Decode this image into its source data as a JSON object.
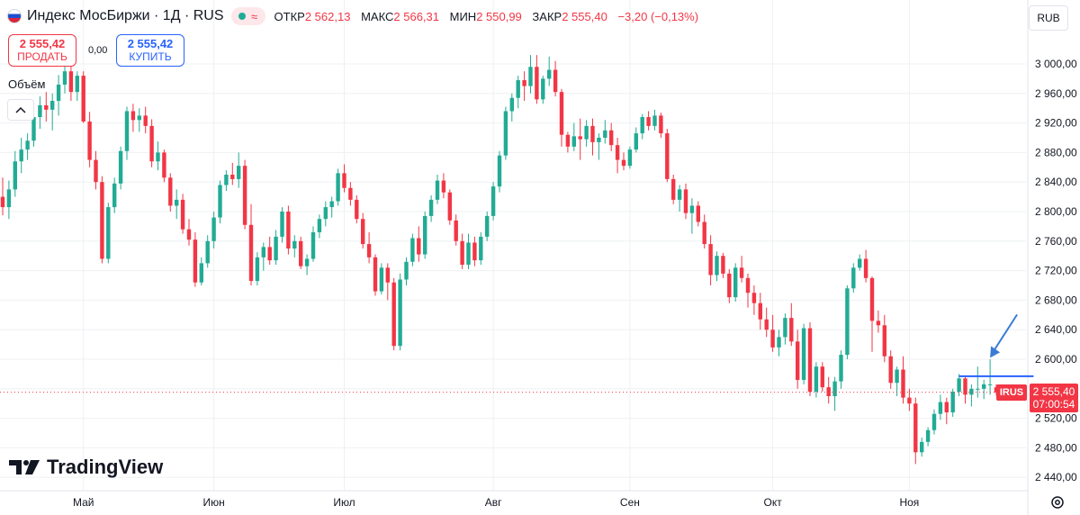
{
  "header": {
    "title": "Индекс МосБиржи · 1Д · RUS",
    "ohlc": [
      {
        "label": "ОТКР",
        "value": "2 562,13"
      },
      {
        "label": "МАКС",
        "value": "2 566,31"
      },
      {
        "label": "МИН",
        "value": "2 550,99"
      },
      {
        "label": "ЗАКР",
        "value": "2 555,40"
      }
    ],
    "change": "−3,20 (−0,13%)"
  },
  "trade": {
    "sell_price": "2 555,42",
    "sell_label": "ПРОДАТЬ",
    "spread": "0,00",
    "buy_price": "2 555,42",
    "buy_label": "КУПИТЬ"
  },
  "volume_label": "Объём",
  "currency": "RUB",
  "logo_text": "TradingView",
  "price_tag": {
    "symbol": "IRUS",
    "price": "2 555,40",
    "countdown": "07:00:54"
  },
  "colors": {
    "up": "#22ab94",
    "down": "#f23645",
    "line": "#2962ff",
    "grid": "#eef0f3"
  },
  "chart_data": {
    "type": "candlestick",
    "ylim": [
      2420,
      3040
    ],
    "yticks": [
      2440,
      2480,
      2520,
      2560,
      2600,
      2640,
      2680,
      2720,
      2760,
      2800,
      2840,
      2880,
      2920,
      2960,
      3000
    ],
    "ytick_labels": [
      "2 440,00",
      "2 480,00",
      "2 520,00",
      "2 560,00",
      "2 600,00",
      "2 640,00",
      "2 680,00",
      "2 720,00",
      "2 760,00",
      "2 800,00",
      "2 840,00",
      "2 880,00",
      "2 920,00",
      "2 960,00",
      "3 000,00"
    ],
    "x_labels": [
      "Май",
      "Июн",
      "Июл",
      "Авг",
      "Сен",
      "Окт",
      "Ноя"
    ],
    "x_label_index": [
      13,
      34,
      55,
      79,
      101,
      124,
      146
    ],
    "ohlc": [
      [
        2820,
        2846,
        2795,
        2806
      ],
      [
        2806,
        2842,
        2790,
        2830
      ],
      [
        2830,
        2882,
        2820,
        2868
      ],
      [
        2868,
        2900,
        2852,
        2884
      ],
      [
        2884,
        2906,
        2870,
        2896
      ],
      [
        2896,
        2932,
        2888,
        2928
      ],
      [
        2928,
        2956,
        2912,
        2944
      ],
      [
        2944,
        2962,
        2922,
        2938
      ],
      [
        2938,
        2960,
        2910,
        2950
      ],
      [
        2950,
        2985,
        2930,
        2972
      ],
      [
        2972,
        3000,
        2960,
        2990
      ],
      [
        2990,
        2998,
        2950,
        2962
      ],
      [
        2962,
        2990,
        2950,
        2984
      ],
      [
        2984,
        2990,
        2920,
        2922
      ],
      [
        2922,
        2935,
        2860,
        2870
      ],
      [
        2870,
        2882,
        2830,
        2840
      ],
      [
        2840,
        2848,
        2730,
        2736
      ],
      [
        2736,
        2812,
        2730,
        2806
      ],
      [
        2806,
        2846,
        2798,
        2838
      ],
      [
        2838,
        2888,
        2830,
        2882
      ],
      [
        2882,
        2942,
        2870,
        2936
      ],
      [
        2936,
        2946,
        2908,
        2924
      ],
      [
        2924,
        2940,
        2908,
        2930
      ],
      [
        2930,
        2942,
        2906,
        2916
      ],
      [
        2916,
        2925,
        2860,
        2868
      ],
      [
        2868,
        2895,
        2856,
        2880
      ],
      [
        2880,
        2884,
        2840,
        2846
      ],
      [
        2846,
        2852,
        2800,
        2808
      ],
      [
        2808,
        2830,
        2790,
        2816
      ],
      [
        2816,
        2824,
        2770,
        2776
      ],
      [
        2776,
        2790,
        2754,
        2762
      ],
      [
        2762,
        2772,
        2698,
        2704
      ],
      [
        2704,
        2738,
        2700,
        2730
      ],
      [
        2730,
        2768,
        2724,
        2760
      ],
      [
        2760,
        2800,
        2750,
        2792
      ],
      [
        2792,
        2842,
        2784,
        2836
      ],
      [
        2836,
        2856,
        2828,
        2850
      ],
      [
        2850,
        2866,
        2836,
        2844
      ],
      [
        2844,
        2880,
        2832,
        2862
      ],
      [
        2862,
        2870,
        2776,
        2782
      ],
      [
        2782,
        2810,
        2700,
        2706
      ],
      [
        2706,
        2745,
        2700,
        2738
      ],
      [
        2738,
        2758,
        2720,
        2752
      ],
      [
        2752,
        2766,
        2728,
        2734
      ],
      [
        2734,
        2775,
        2728,
        2766
      ],
      [
        2766,
        2806,
        2758,
        2800
      ],
      [
        2800,
        2808,
        2742,
        2750
      ],
      [
        2750,
        2768,
        2738,
        2760
      ],
      [
        2760,
        2766,
        2722,
        2726
      ],
      [
        2726,
        2742,
        2714,
        2736
      ],
      [
        2736,
        2780,
        2732,
        2772
      ],
      [
        2772,
        2796,
        2764,
        2790
      ],
      [
        2790,
        2814,
        2780,
        2806
      ],
      [
        2806,
        2820,
        2792,
        2814
      ],
      [
        2814,
        2858,
        2808,
        2852
      ],
      [
        2852,
        2864,
        2826,
        2832
      ],
      [
        2832,
        2840,
        2808,
        2816
      ],
      [
        2816,
        2822,
        2784,
        2790
      ],
      [
        2790,
        2798,
        2750,
        2756
      ],
      [
        2756,
        2772,
        2730,
        2738
      ],
      [
        2738,
        2742,
        2686,
        2692
      ],
      [
        2692,
        2730,
        2688,
        2724
      ],
      [
        2724,
        2730,
        2680,
        2704
      ],
      [
        2704,
        2710,
        2612,
        2618
      ],
      [
        2618,
        2716,
        2612,
        2708
      ],
      [
        2708,
        2738,
        2700,
        2732
      ],
      [
        2732,
        2770,
        2726,
        2764
      ],
      [
        2764,
        2780,
        2732,
        2742
      ],
      [
        2742,
        2800,
        2736,
        2794
      ],
      [
        2794,
        2822,
        2786,
        2816
      ],
      [
        2816,
        2850,
        2810,
        2842
      ],
      [
        2842,
        2852,
        2818,
        2826
      ],
      [
        2826,
        2830,
        2782,
        2788
      ],
      [
        2788,
        2796,
        2754,
        2760
      ],
      [
        2760,
        2770,
        2722,
        2728
      ],
      [
        2728,
        2770,
        2722,
        2758
      ],
      [
        2758,
        2766,
        2726,
        2734
      ],
      [
        2734,
        2772,
        2728,
        2766
      ],
      [
        2766,
        2800,
        2760,
        2794
      ],
      [
        2794,
        2840,
        2788,
        2834
      ],
      [
        2834,
        2882,
        2826,
        2876
      ],
      [
        2876,
        2942,
        2870,
        2936
      ],
      [
        2936,
        2960,
        2922,
        2954
      ],
      [
        2954,
        2984,
        2940,
        2978
      ],
      [
        2978,
        2990,
        2950,
        2970
      ],
      [
        2970,
        3012,
        2960,
        2996
      ],
      [
        2996,
        3012,
        2946,
        2952
      ],
      [
        2952,
        2984,
        2946,
        2980
      ],
      [
        2980,
        3010,
        2970,
        2992
      ],
      [
        2992,
        3004,
        2956,
        2962
      ],
      [
        2962,
        2966,
        2888,
        2904
      ],
      [
        2904,
        2908,
        2880,
        2888
      ],
      [
        2888,
        2920,
        2882,
        2902
      ],
      [
        2902,
        2926,
        2870,
        2898
      ],
      [
        2898,
        2924,
        2888,
        2916
      ],
      [
        2916,
        2926,
        2876,
        2894
      ],
      [
        2894,
        2906,
        2870,
        2900
      ],
      [
        2900,
        2924,
        2892,
        2910
      ],
      [
        2910,
        2920,
        2882,
        2890
      ],
      [
        2890,
        2900,
        2852,
        2870
      ],
      [
        2870,
        2880,
        2856,
        2862
      ],
      [
        2862,
        2888,
        2858,
        2884
      ],
      [
        2884,
        2914,
        2880,
        2906
      ],
      [
        2906,
        2932,
        2898,
        2928
      ],
      [
        2928,
        2936,
        2910,
        2916
      ],
      [
        2916,
        2938,
        2910,
        2930
      ],
      [
        2930,
        2934,
        2900,
        2906
      ],
      [
        2906,
        2912,
        2840,
        2844
      ],
      [
        2844,
        2850,
        2810,
        2816
      ],
      [
        2816,
        2836,
        2800,
        2830
      ],
      [
        2830,
        2838,
        2790,
        2798
      ],
      [
        2798,
        2818,
        2770,
        2808
      ],
      [
        2808,
        2814,
        2780,
        2786
      ],
      [
        2786,
        2796,
        2750,
        2756
      ],
      [
        2756,
        2768,
        2700,
        2714
      ],
      [
        2714,
        2746,
        2706,
        2740
      ],
      [
        2740,
        2744,
        2710,
        2716
      ],
      [
        2716,
        2722,
        2676,
        2684
      ],
      [
        2684,
        2730,
        2678,
        2724
      ],
      [
        2724,
        2740,
        2704,
        2710
      ],
      [
        2710,
        2716,
        2670,
        2690
      ],
      [
        2690,
        2700,
        2660,
        2676
      ],
      [
        2676,
        2690,
        2640,
        2654
      ],
      [
        2654,
        2670,
        2630,
        2640
      ],
      [
        2640,
        2660,
        2610,
        2616
      ],
      [
        2616,
        2640,
        2604,
        2630
      ],
      [
        2630,
        2662,
        2620,
        2656
      ],
      [
        2656,
        2676,
        2618,
        2624
      ],
      [
        2624,
        2640,
        2560,
        2572
      ],
      [
        2572,
        2648,
        2566,
        2642
      ],
      [
        2642,
        2650,
        2550,
        2556
      ],
      [
        2556,
        2596,
        2548,
        2590
      ],
      [
        2590,
        2596,
        2556,
        2562
      ],
      [
        2562,
        2576,
        2540,
        2550
      ],
      [
        2550,
        2576,
        2530,
        2570
      ],
      [
        2570,
        2612,
        2560,
        2606
      ],
      [
        2606,
        2700,
        2600,
        2696
      ],
      [
        2696,
        2730,
        2690,
        2724
      ],
      [
        2724,
        2742,
        2720,
        2736
      ],
      [
        2736,
        2748,
        2704,
        2710
      ],
      [
        2710,
        2712,
        2610,
        2652
      ],
      [
        2652,
        2666,
        2636,
        2646
      ],
      [
        2646,
        2660,
        2596,
        2604
      ],
      [
        2604,
        2612,
        2560,
        2568
      ],
      [
        2568,
        2590,
        2550,
        2586
      ],
      [
        2586,
        2604,
        2540,
        2548
      ],
      [
        2548,
        2560,
        2530,
        2540
      ],
      [
        2540,
        2548,
        2458,
        2474
      ],
      [
        2474,
        2494,
        2468,
        2488
      ],
      [
        2488,
        2508,
        2482,
        2504
      ],
      [
        2504,
        2532,
        2498,
        2526
      ],
      [
        2526,
        2552,
        2518,
        2542
      ],
      [
        2542,
        2548,
        2512,
        2528
      ],
      [
        2528,
        2560,
        2522,
        2556
      ],
      [
        2556,
        2580,
        2550,
        2574
      ],
      [
        2574,
        2578,
        2540,
        2552
      ],
      [
        2552,
        2566,
        2536,
        2560
      ],
      [
        2560,
        2590,
        2548,
        2560
      ],
      [
        2560,
        2572,
        2546,
        2566
      ],
      [
        2566,
        2600,
        2552,
        2566
      ],
      [
        2562,
        2566,
        2551,
        2555
      ]
    ],
    "hline": 2577,
    "last_price": 2555.4
  }
}
